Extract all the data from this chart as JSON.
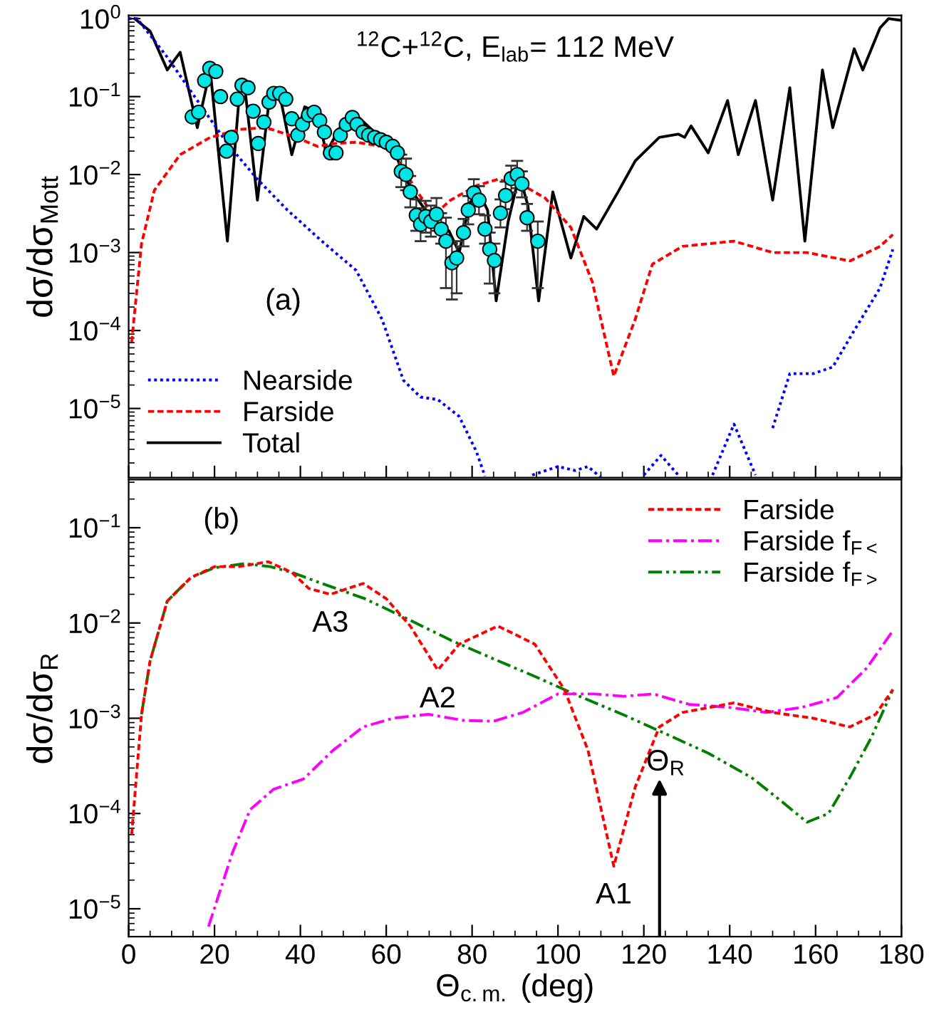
{
  "chart_data": [
    {
      "type": "line",
      "title": "$^{12}$C+$^{12}$C, E$_{lab}$= 112 MeV",
      "ylabel": "dσ/dσ$_{Mott}$",
      "log": "y",
      "legend": "bottom left",
      "tick_labels": "y",
      "grid": false,
      "annotations": [
        "(a)"
      ],
      "xlim": [
        0,
        180
      ],
      "xticks": [
        0,
        20,
        40,
        60,
        80,
        100,
        120,
        140,
        160,
        180
      ],
      "ylim": [
        1.3e-06,
        1.1
      ],
      "yticks": [
        {
          "value": 1,
          "label": "10$^{0}$"
        },
        {
          "value": 0.1,
          "label": "10$^{−1}$"
        },
        {
          "value": 0.01,
          "label": "10$^{−2}$"
        },
        {
          "value": 0.001,
          "label": "10$^{−3}$"
        },
        {
          "value": 0.0001,
          "label": "10$^{−4}$"
        },
        {
          "value": 1e-05,
          "label": "10$^{−5}$"
        }
      ],
      "series": [
        {
          "name": "Nearside",
          "color": "#0000ff",
          "line_style": "dotted",
          "x": [
            0,
            2,
            9,
            16,
            23,
            30,
            37,
            45,
            53,
            59,
            64,
            68,
            72,
            77,
            81,
            83,
            88,
            94,
            100,
            104,
            107,
            110,
            115,
            120,
            124,
            128,
            132,
            136,
            141,
            146,
            148,
            150,
            154,
            159.5,
            164,
            169,
            175,
            178
          ],
          "values": [
            1.0,
            1.0,
            0.32,
            0.089,
            0.025,
            0.0087,
            0.0035,
            0.0014,
            0.00059,
            0.00014,
            2.3e-05,
            1.4e-05,
            1.3e-05,
            7.9e-06,
            2.8e-06,
            1.35e-06,
            null,
            1.4e-06,
            1.8e-06,
            1.6e-06,
            1.8e-06,
            1.3e-06,
            null,
            1.4e-06,
            2.5e-06,
            1.4e-06,
            null,
            1.4e-06,
            6.3e-06,
            1.4e-06,
            null,
            5.6e-06,
            2.8e-05,
            2.8e-05,
            3.4e-05,
            0.0001,
            0.00035,
            0.0011
          ]
        },
        {
          "name": "Farside",
          "color": "#ff0000",
          "line_style": "dashed",
          "x": [
            0.7,
            3,
            6,
            12,
            19,
            26,
            32,
            39,
            44,
            48,
            53,
            59,
            62,
            67,
            71,
            75,
            81,
            86,
            92,
            97,
            103,
            108,
            113,
            118,
            122,
            129,
            141,
            150,
            158,
            168,
            175,
            178
          ],
          "values": [
            7.1e-05,
            0.0013,
            0.0063,
            0.018,
            0.03,
            0.038,
            0.04,
            0.03,
            0.023,
            0.025,
            0.026,
            0.023,
            0.018,
            0.0063,
            0.003,
            0.0047,
            0.0072,
            0.0087,
            0.0072,
            0.005,
            0.0021,
            0.00042,
            2.6e-05,
            0.00014,
            0.00071,
            0.0012,
            0.0014,
            0.001,
            0.001,
            0.00078,
            0.0012,
            0.0017
          ]
        },
        {
          "name": "Total",
          "color": "#000000",
          "line_style": "solid",
          "x": [
            1.4,
            5,
            9,
            12,
            16,
            19,
            23,
            26,
            27,
            30,
            33,
            35,
            38,
            41,
            44,
            46,
            50,
            53,
            57,
            61.5,
            64,
            67,
            70,
            72.5,
            74.6,
            77,
            79.4,
            81.5,
            83.6,
            85.6,
            88.4,
            91,
            93,
            95.5,
            98.8,
            103,
            106,
            109,
            114,
            118,
            123.6,
            128,
            129.5,
            131,
            135,
            139.5,
            142,
            146,
            150,
            154,
            157.5,
            161.6,
            164,
            169,
            171,
            175,
            177,
            180
          ],
          "values": [
            1.0,
            0.69,
            0.22,
            0.37,
            0.04,
            0.22,
            0.0014,
            0.15,
            0.14,
            0.0047,
            0.12,
            0.12,
            0.018,
            0.074,
            0.063,
            0.019,
            0.048,
            0.058,
            0.036,
            0.023,
            0.01,
            0.0051,
            0.003,
            0.0019,
            0.0019,
            0.001,
            0.0043,
            0.006,
            0.0035,
            0.00024,
            0.0025,
            0.01,
            0.004,
            0.00024,
            0.006,
            0.00085,
            0.0029,
            0.002,
            0.006,
            0.015,
            0.03,
            0.033,
            0.03,
            0.042,
            0.019,
            0.089,
            0.018,
            0.089,
            0.0047,
            0.13,
            0.0014,
            0.22,
            0.04,
            0.41,
            0.22,
            0.76,
            1.0,
            0.95
          ]
        },
        {
          "type": "scatter",
          "color": "#00e5e5",
          "marker": "circle",
          "x": [
            14.8,
            16.3,
            17.7,
            18.9,
            20.3,
            21.4,
            22.8,
            23.9,
            25.3,
            26.4,
            27.8,
            29.0,
            30.2,
            31.5,
            32.7,
            33.8,
            35.2,
            36.6,
            38.0,
            39.4,
            40.5,
            41.9,
            43.2,
            44.5,
            45.6,
            47.0,
            48.3,
            49.3,
            50.7,
            52.1,
            53.2,
            54.6,
            55.9,
            57.3,
            58.7,
            60.0,
            61.5,
            62.6,
            63.5,
            64.6,
            65.6,
            67.0,
            68.0,
            69.2,
            70.4,
            71.7,
            72.8,
            73.9,
            75.3,
            76.4,
            78.0,
            79.1,
            80.4,
            81.6,
            83.0,
            84.1,
            85.2,
            86.6,
            87.8,
            89.1,
            90.5,
            91.6,
            92.8,
            95.3
          ],
          "values": [
            0.055,
            0.063,
            0.16,
            0.23,
            0.21,
            0.1,
            0.02,
            0.03,
            0.093,
            0.14,
            0.13,
            0.065,
            0.025,
            0.047,
            0.085,
            0.11,
            0.11,
            0.093,
            0.052,
            0.032,
            0.044,
            0.058,
            0.063,
            0.049,
            0.035,
            0.019,
            0.019,
            0.032,
            0.044,
            0.054,
            0.044,
            0.035,
            0.032,
            0.03,
            0.028,
            0.026,
            0.023,
            0.019,
            0.011,
            0.01,
            0.006,
            0.003,
            0.0023,
            0.0029,
            0.0025,
            0.0031,
            0.002,
            0.0014,
            0.00074,
            0.00085,
            0.0018,
            0.0035,
            0.0058,
            0.0047,
            0.002,
            0.0011,
            0.00079,
            0.0032,
            0.0054,
            0.0089,
            0.01,
            0.0076,
            0.0028,
            0.0014
          ],
          "errors": [
            null,
            null,
            null,
            null,
            null,
            null,
            null,
            null,
            null,
            null,
            null,
            null,
            null,
            null,
            null,
            null,
            null,
            null,
            null,
            null,
            null,
            null,
            null,
            null,
            null,
            null,
            null,
            null,
            null,
            null,
            null,
            null,
            null,
            null,
            null,
            null,
            null,
            null,
            [
              0.0069,
              0.018
            ],
            [
              0.0063,
              0.016
            ],
            [
              0.0038,
              0.0096
            ],
            [
              0.0019,
              0.0048
            ],
            [
              0.0014,
              0.0037
            ],
            [
              0.0018,
              0.0046
            ],
            [
              0.0016,
              0.004
            ],
            [
              0.0019,
              0.005
            ],
            [
              0.0013,
              0.0032
            ],
            [
              0.00035,
              0.0028
            ],
            [
              0.00025,
              0.0013
            ],
            [
              0.0003,
              0.0014
            ],
            [
              0.0012,
              0.0027
            ],
            [
              0.0023,
              0.0053
            ],
            [
              0.0039,
              0.0087
            ],
            [
              0.0031,
              0.0071
            ],
            [
              0.0013,
              0.003
            ],
            [
              0.0004,
              0.0018
            ],
            [
              0.0003,
              0.0013
            ],
            [
              0.0021,
              0.0048
            ],
            [
              0.0036,
              0.0081
            ],
            [
              0.0059,
              0.013
            ],
            [
              0.0067,
              0.015
            ],
            [
              0.0051,
              0.011
            ],
            [
              0.0019,
              0.0042
            ],
            [
              0.00035,
              0.0025
            ]
          ]
        }
      ]
    },
    {
      "type": "line",
      "xlabel": "Θ$_{c.m.}$ (deg)",
      "ylabel": "dσ/dσ$_{R}$",
      "log": "y",
      "legend": "top right",
      "grid": false,
      "annotations": [
        "(b)",
        {
          "text": "A3",
          "x": 47,
          "y": 0.02
        },
        {
          "text": "A2",
          "x": 72,
          "y": 0.0032
        },
        {
          "text": "A1",
          "x": 113,
          "y": 2.8e-05
        },
        "Θ$_{R}$"
      ],
      "xlim": [
        0,
        180
      ],
      "xticks": [
        0,
        20,
        40,
        60,
        80,
        100,
        120,
        140,
        160,
        180
      ],
      "ylim": [
        5.1e-06,
        0.32
      ],
      "yticks": [
        {
          "value": 0.1,
          "label": "10$^{−1}$"
        },
        {
          "value": 0.01,
          "label": "10$^{−2}$"
        },
        {
          "value": 0.001,
          "label": "10$^{−3}$"
        },
        {
          "value": 0.0001,
          "label": "10$^{−4}$"
        },
        {
          "value": 1e-05,
          "label": "10$^{−5}$"
        }
      ],
      "series": [
        {
          "name": "Farside",
          "color": "#ff0000",
          "line_style": "dashed",
          "x": [
            0.7,
            3,
            5,
            9,
            14.5,
            20,
            25.5,
            32.5,
            38,
            42,
            47,
            54.6,
            60,
            65.6,
            72,
            77,
            86,
            94.6,
            101.5,
            107,
            113,
            118,
            123.6,
            129,
            141,
            150,
            159.5,
            168,
            174,
            178
          ],
          "values": [
            6e-05,
            0.0011,
            0.004,
            0.017,
            0.03,
            0.039,
            0.039,
            0.044,
            0.034,
            0.023,
            0.02,
            0.026,
            0.018,
            0.0093,
            0.0032,
            0.006,
            0.0093,
            0.006,
            0.002,
            0.00046,
            2.8e-05,
            0.00019,
            0.00081,
            0.00115,
            0.00145,
            0.00115,
            0.001,
            0.00081,
            0.0011,
            0.002
          ]
        },
        {
          "name": "Farside f$_{F<}$",
          "color": "#ff00ff",
          "line_style": "dashdot",
          "x": [
            18.6,
            24.2,
            28.3,
            33.8,
            40.7,
            47.6,
            54.6,
            61.5,
            69.8,
            78,
            85,
            91.8,
            100,
            108.4,
            115.3,
            122.2,
            130.5,
            140,
            148.5,
            156.8,
            165,
            172,
            178
          ],
          "values": [
            6.5e-06,
            3.9e-05,
            0.00011,
            0.00018,
            0.00023,
            0.00046,
            0.00081,
            0.001,
            0.0011,
            0.00095,
            0.00093,
            0.00115,
            0.0018,
            0.0018,
            0.0017,
            0.0018,
            0.0014,
            0.0013,
            0.00115,
            0.0013,
            0.00165,
            0.0034,
            0.0083
          ]
        },
        {
          "name": "Farside f$_{F>}$",
          "color": "#008000",
          "line_style": "dashdotdot",
          "x": [
            3,
            5,
            9,
            14.5,
            20,
            27,
            33,
            38,
            45,
            55,
            65,
            75,
            85,
            95,
            105,
            115,
            125,
            135,
            145,
            152,
            158,
            163,
            168,
            173,
            178
          ],
          "values": [
            0.0011,
            0.004,
            0.017,
            0.03,
            0.038,
            0.042,
            0.039,
            0.034,
            0.026,
            0.018,
            0.011,
            0.0066,
            0.0042,
            0.0027,
            0.0017,
            0.0011,
            0.00069,
            0.00043,
            0.00024,
            0.000135,
            8.1e-05,
            0.0001,
            0.00024,
            0.00063,
            0.002
          ]
        }
      ]
    }
  ]
}
